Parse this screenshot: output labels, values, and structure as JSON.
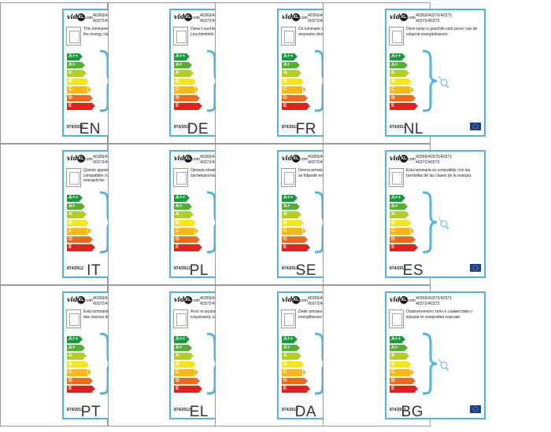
{
  "logo": {
    "vida": "vida",
    "xl": "XL",
    "com": ".com"
  },
  "codes_line1": "40369/40370/40371",
  "codes_line2": "40372/40373",
  "regulation": "874/2012",
  "energy_classes": [
    "A++",
    "A+",
    "A",
    "B",
    "C",
    "D",
    "E"
  ],
  "class_colors": [
    "#1a9a3a",
    "#56b030",
    "#b5cf1f",
    "#f5e61a",
    "#f8b71a",
    "#ee6a1d",
    "#e3201b"
  ],
  "brace_color": "#4fb5df",
  "panels": [
    {
      "lang": "EN",
      "text": "This luminaire is compatible with bulbs of the energy classes:"
    },
    {
      "lang": "DE",
      "text": "Diese Leuchte ist kompatibel mit den Leuchtmitteln der Energieklassen:"
    },
    {
      "lang": "FR",
      "text": "Ce luminaire est compatible avec les ampoules des classes énergétiques:"
    },
    {
      "lang": "NL",
      "text": "Deze lamp is geschikt voor peren van de volgend energieklassen:"
    },
    {
      "lang": "IT",
      "text": "Questo apparecchio d'illuminazione è compatibile con le lampadine delle classi energetiche:"
    },
    {
      "lang": "PL",
      "text": "Oprawa oświetleniowa jest kompatybilna z żarówkami klas energetycznych:"
    },
    {
      "lang": "SE",
      "text": "Denna armatur är kompatibel med lampor av följande energiklasser:"
    },
    {
      "lang": "ES",
      "text": "Esta luminaria es compatible con las bombillas de las clases de la energía:"
    },
    {
      "lang": "PT",
      "text": "Esta luminária é compatível com bulbos das classes de energia:"
    },
    {
      "lang": "EL",
      "text": "Αυτό το φωτιστικό είναι συμβατό με λάμπες ενεργειακής κλάσης:"
    },
    {
      "lang": "DA",
      "text": "Dette armatur er kompatibel med løg af energiklasser:"
    },
    {
      "lang": "BG",
      "text": "Осветителното тяло е съвместимо с крушки от енергийни класове:"
    }
  ]
}
